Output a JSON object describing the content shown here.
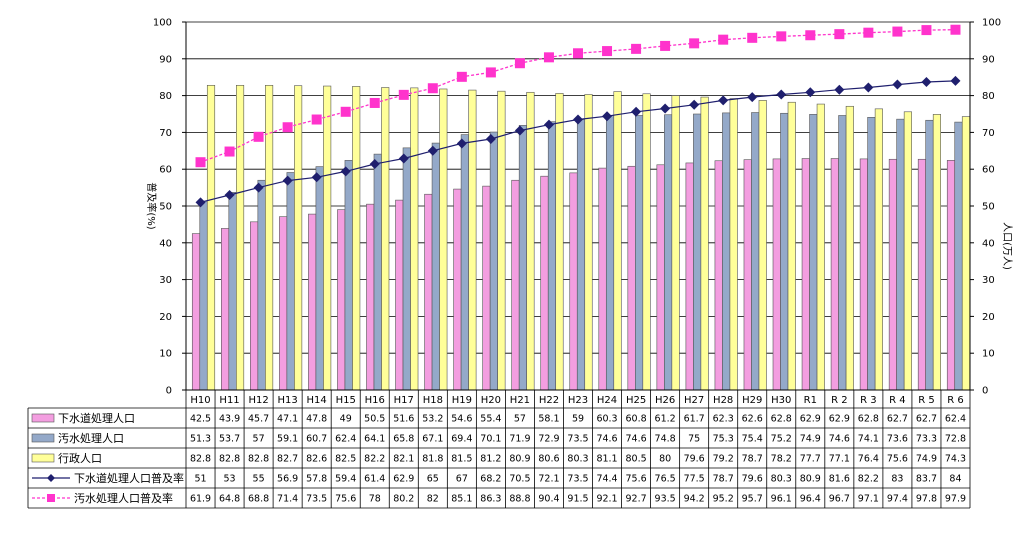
{
  "chart_data": {
    "type": "bar",
    "categories": [
      "H10",
      "H11",
      "H12",
      "H13",
      "H14",
      "H15",
      "H16",
      "H17",
      "H18",
      "H19",
      "H20",
      "H21",
      "H22",
      "H23",
      "H24",
      "H25",
      "H26",
      "H27",
      "H28",
      "H29",
      "H30",
      "R1",
      "R 2",
      "R 3",
      "R 4",
      "R 5",
      "R 6"
    ],
    "ylabel_left": "普及率(%)",
    "ylabel_right": "人口(万人)",
    "ylim_left": [
      0,
      100
    ],
    "ylim_right": [
      0,
      100
    ],
    "yticks_left": [
      "0",
      "10",
      "20",
      "30",
      "40",
      "50",
      "60",
      "70",
      "80",
      "90",
      "100"
    ],
    "yticks_right": [
      "0",
      "10",
      "20",
      "30",
      "40",
      "50",
      "60",
      "70",
      "80",
      "90",
      "100"
    ],
    "grid": true,
    "legend_placement": "data-table",
    "series": [
      {
        "name": "下水道処理人口",
        "kind": "bar",
        "axis": "right",
        "color": "#f39ee0",
        "values": [
          42.5,
          43.9,
          45.7,
          47.1,
          47.8,
          49.0,
          50.5,
          51.6,
          53.2,
          54.6,
          55.4,
          57.0,
          58.1,
          59.0,
          60.3,
          60.8,
          61.2,
          61.7,
          62.3,
          62.6,
          62.8,
          62.9,
          62.9,
          62.8,
          62.7,
          62.7,
          62.4
        ]
      },
      {
        "name": "汚水処理人口",
        "kind": "bar",
        "axis": "right",
        "color": "#94a9c9",
        "values": [
          51.3,
          53.7,
          57.0,
          59.1,
          60.7,
          62.4,
          64.1,
          65.8,
          67.1,
          69.4,
          70.1,
          71.9,
          72.9,
          73.5,
          74.6,
          74.6,
          74.8,
          75.0,
          75.3,
          75.4,
          75.2,
          74.9,
          74.6,
          74.1,
          73.6,
          73.3,
          72.8
        ]
      },
      {
        "name": "行政人口",
        "kind": "bar",
        "axis": "right",
        "color": "#ffff99",
        "values": [
          82.8,
          82.8,
          82.8,
          82.7,
          82.6,
          82.5,
          82.2,
          82.1,
          81.8,
          81.5,
          81.2,
          80.9,
          80.6,
          80.3,
          81.1,
          80.5,
          80.0,
          79.6,
          79.2,
          78.7,
          78.2,
          77.7,
          77.1,
          76.4,
          75.6,
          74.9,
          74.3
        ]
      },
      {
        "name": "下水道処理人口普及率",
        "kind": "line",
        "axis": "left",
        "color": "#1f1f6e",
        "values": [
          51.0,
          53.0,
          55.0,
          56.9,
          57.8,
          59.4,
          61.4,
          62.9,
          65.0,
          67.0,
          68.2,
          70.5,
          72.1,
          73.5,
          74.4,
          75.6,
          76.5,
          77.5,
          78.7,
          79.6,
          80.3,
          80.9,
          81.6,
          82.2,
          83.0,
          83.7,
          84.0
        ]
      },
      {
        "name": "汚水処理人口普及率",
        "kind": "line",
        "axis": "left",
        "color": "#ff33cc",
        "values": [
          61.9,
          64.8,
          68.8,
          71.4,
          73.5,
          75.6,
          78.0,
          80.2,
          82.0,
          85.1,
          86.3,
          88.8,
          90.4,
          91.5,
          92.1,
          92.7,
          93.5,
          94.2,
          95.2,
          95.7,
          96.1,
          96.4,
          96.7,
          97.1,
          97.4,
          97.8,
          97.9
        ]
      }
    ]
  }
}
